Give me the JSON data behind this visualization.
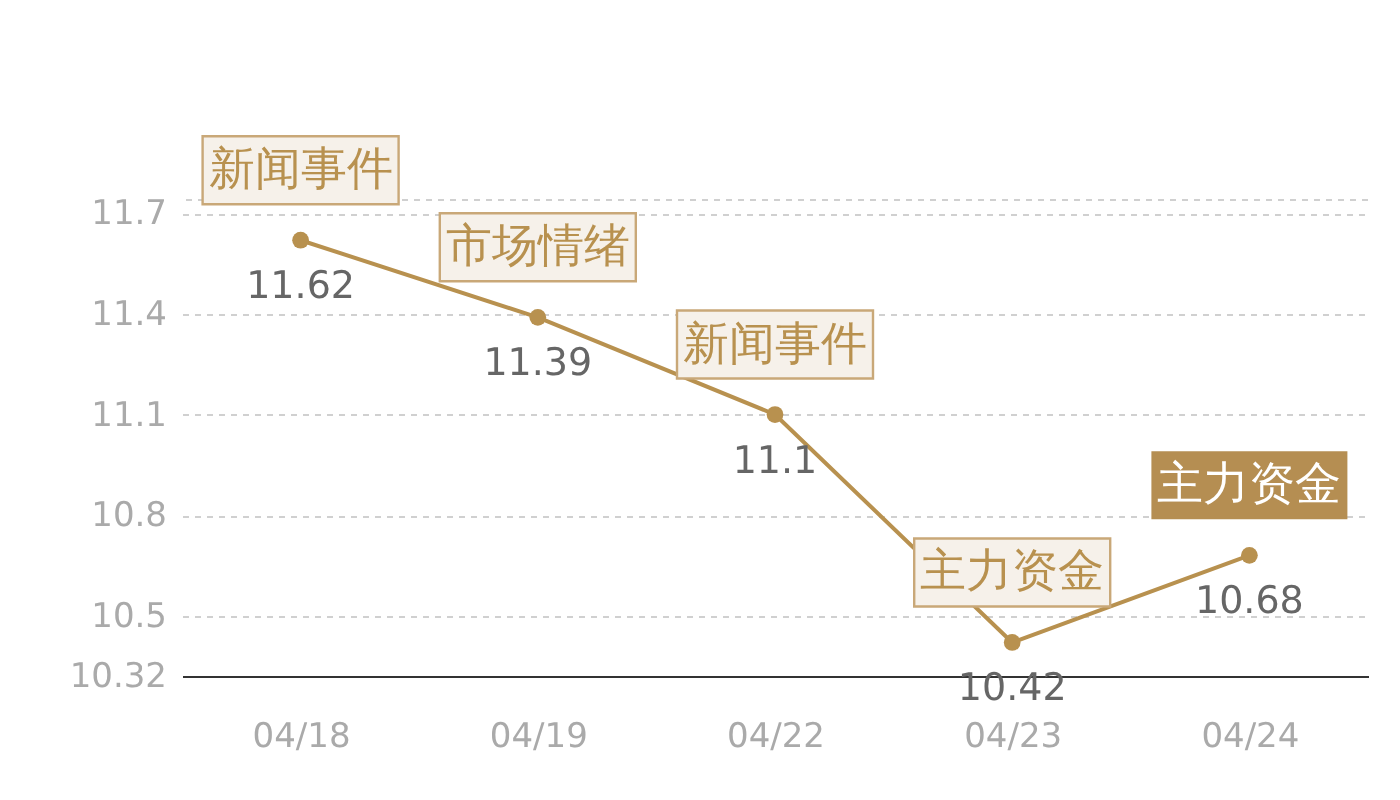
{
  "chart_data": {
    "type": "line",
    "categories": [
      "04/18",
      "04/19",
      "04/22",
      "04/23",
      "04/24"
    ],
    "series": [
      {
        "color": "#b8914f",
        "values": [
          11.62,
          11.39,
          11.1,
          10.42,
          10.68
        ]
      }
    ],
    "ylim": [
      10.32,
      11.74
    ],
    "yticks": [
      10.32,
      10.5,
      10.8,
      11.1,
      11.4,
      11.7,
      {
        "value": 11.74,
        "label": null
      }
    ],
    "grid": "y",
    "marker": "circle",
    "line_style": "solid",
    "data_labels": true,
    "annotations": [
      {
        "text": "新闻事件",
        "x": "04/18",
        "y": 11.62
      },
      {
        "text": "市场情绪",
        "x": "04/19",
        "y": 11.39
      },
      {
        "text": "新闻事件",
        "x": "04/22",
        "y": 11.1
      },
      {
        "text": "主力资金",
        "x": "04/23",
        "y": 10.42
      },
      {
        "text": "主力资金",
        "x": "04/24",
        "y": 10.68
      }
    ]
  }
}
